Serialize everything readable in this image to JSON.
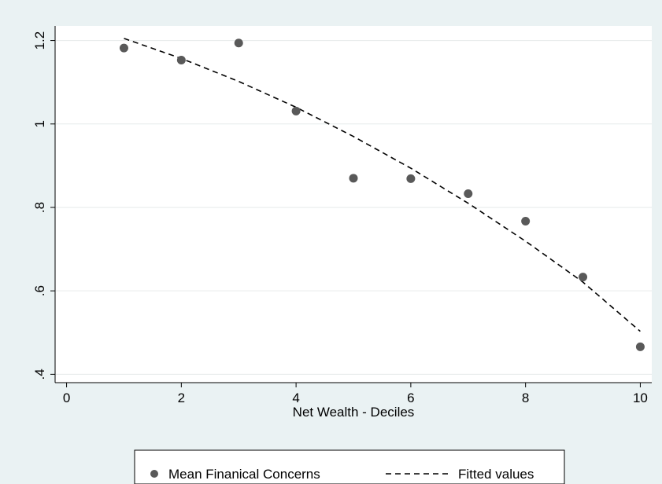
{
  "chart_data": {
    "type": "scatter",
    "xlabel": "Net Wealth - Deciles",
    "ylabel": "",
    "xlim": [
      -0.2,
      10.2
    ],
    "ylim": [
      0.38,
      1.235
    ],
    "grid": true,
    "legend_position": "bottom",
    "x_ticks": [
      {
        "value": 0,
        "label": "0"
      },
      {
        "value": 2,
        "label": "2"
      },
      {
        "value": 4,
        "label": "4"
      },
      {
        "value": 6,
        "label": "6"
      },
      {
        "value": 8,
        "label": "8"
      },
      {
        "value": 10,
        "label": "10"
      }
    ],
    "y_ticks": [
      {
        "value": 0.4,
        "label": ".4"
      },
      {
        "value": 0.6,
        "label": ".6"
      },
      {
        "value": 0.8,
        "label": ".8"
      },
      {
        "value": 1.0,
        "label": "1"
      },
      {
        "value": 1.2,
        "label": "1.2"
      }
    ],
    "series": [
      {
        "name": "Mean Finanical Concerns",
        "type": "scatter",
        "color": "#595959",
        "x": [
          1,
          2,
          3,
          4,
          5,
          6,
          7,
          8,
          9,
          10
        ],
        "y": [
          1.182,
          1.153,
          1.194,
          1.031,
          0.87,
          0.869,
          0.833,
          0.767,
          0.633,
          0.466
        ]
      },
      {
        "name": "Fitted values",
        "type": "line",
        "style": "dashed",
        "color": "#000000",
        "x": [
          1,
          2,
          3,
          4,
          5,
          6,
          7,
          8,
          9,
          10
        ],
        "y": [
          1.205,
          1.157,
          1.102,
          1.04,
          0.97,
          0.894,
          0.81,
          0.719,
          0.621,
          0.503
        ]
      }
    ]
  }
}
